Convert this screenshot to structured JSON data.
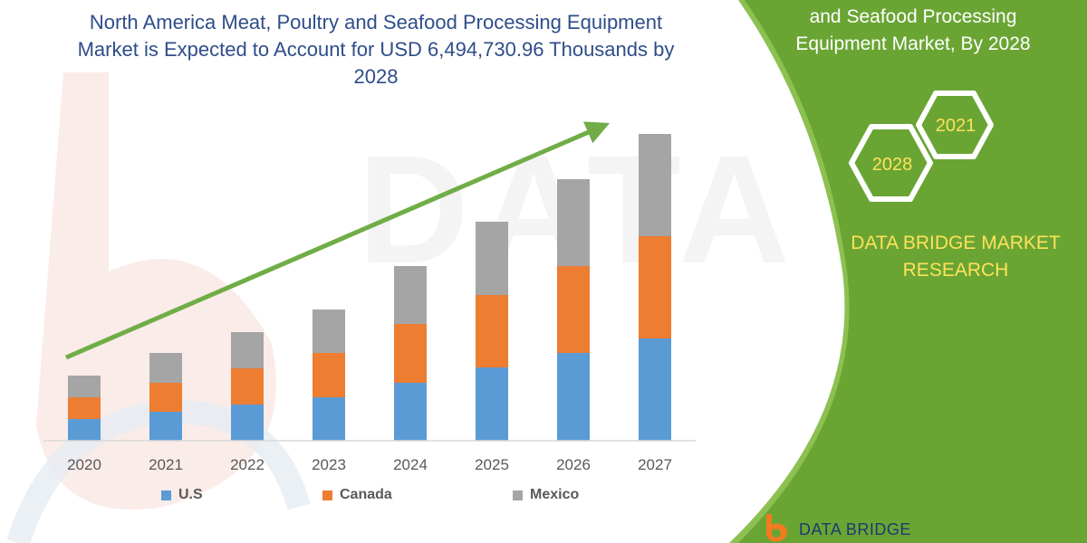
{
  "title_lines": [
    "North America Meat, Poultry and Seafood Processing Equipment",
    "Market is Expected to Account for USD 6,494,730.96 Thousands by",
    "2028"
  ],
  "panel_title_lines": [
    "and Seafood Processing",
    "Equipment Market, By 2028"
  ],
  "hex_labels": {
    "back": "2021",
    "front": "2028"
  },
  "brand_lines": [
    "DATA BRIDGE MARKET",
    "RESEARCH"
  ],
  "logo_text": "DATA BRIDGE",
  "colors": {
    "us": "#5b9bd5",
    "canada": "#ed7d31",
    "mexico": "#a5a5a5",
    "arrow": "#70ad47",
    "panel": "#6aa534",
    "title": "#2f4d8a",
    "brand": "#ffe259"
  },
  "chart_data": {
    "type": "bar",
    "stacked": true,
    "categories": [
      "2020",
      "2021",
      "2022",
      "2023",
      "2024",
      "2025",
      "2026",
      "2027"
    ],
    "series": [
      {
        "name": "U.S",
        "values": [
          24,
          32,
          40,
          48,
          64,
          81,
          97,
          113
        ]
      },
      {
        "name": "Canada",
        "values": [
          24,
          32,
          40,
          49,
          65,
          80,
          96,
          113
        ]
      },
      {
        "name": "Mexico",
        "values": [
          24,
          33,
          40,
          48,
          64,
          81,
          96,
          113
        ]
      }
    ],
    "ylim": [
      0,
      345
    ],
    "y_axis_visible": false,
    "grid": false,
    "legend_position": "bottom",
    "trend_arrow": true
  }
}
